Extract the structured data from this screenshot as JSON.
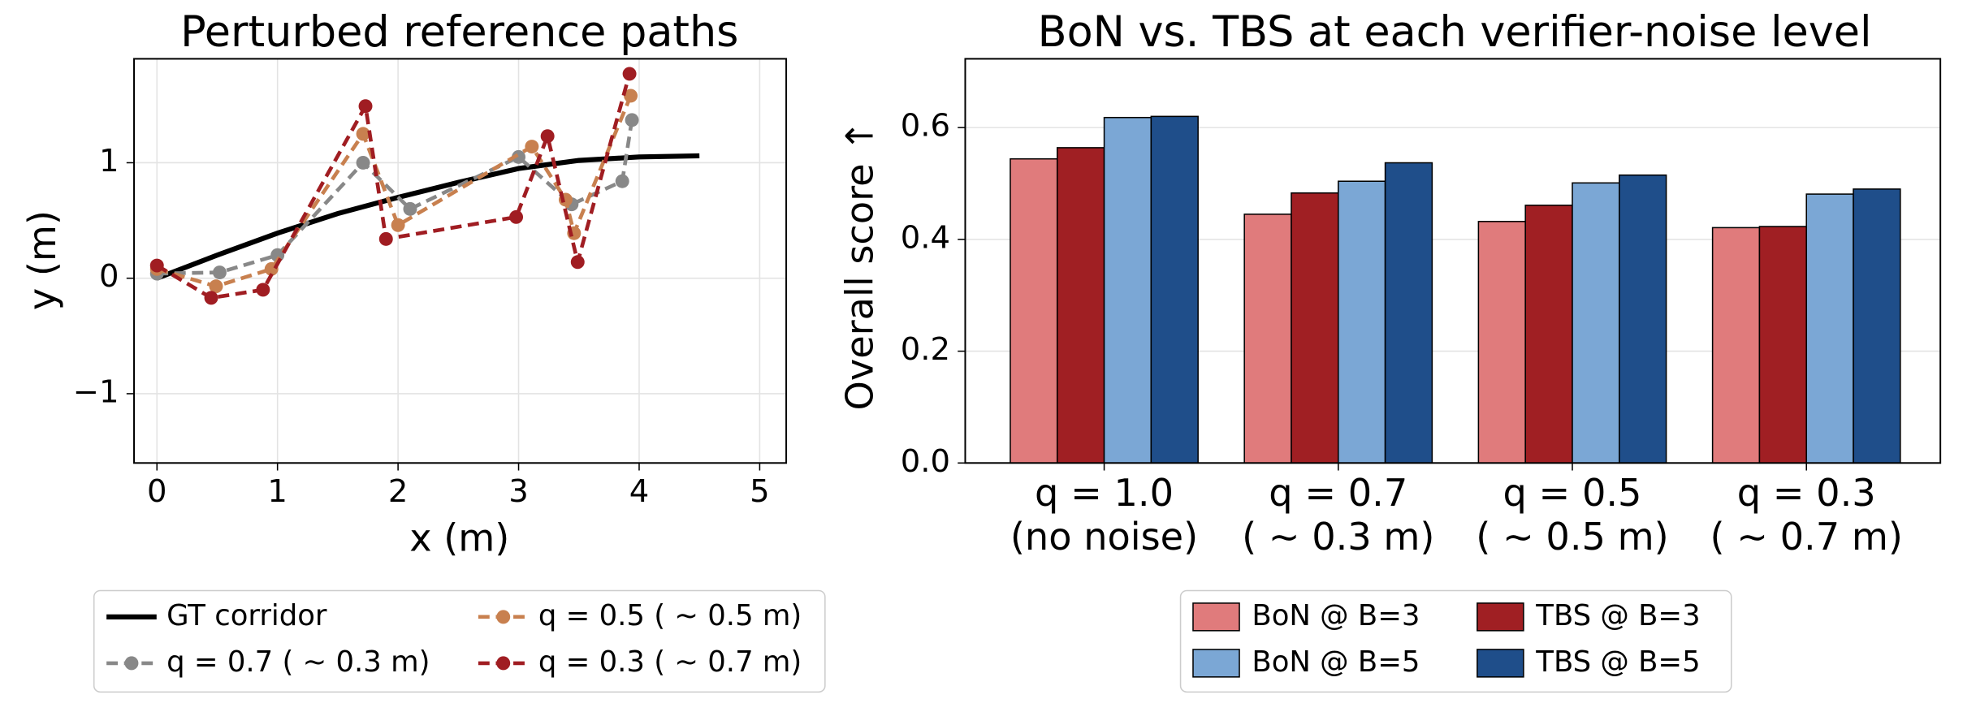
{
  "chart_data": [
    {
      "type": "line",
      "title": "Perturbed reference paths",
      "xlabel": "x (m)",
      "ylabel": "y (m)",
      "xlim": [
        -0.19,
        5.22
      ],
      "ylim": [
        -1.6,
        1.9
      ],
      "xticks": [
        0,
        1,
        2,
        3,
        4,
        5
      ],
      "yticks": [
        {
          "value": -1,
          "label": "−1"
        },
        0,
        1
      ],
      "grid": true,
      "legend": "below",
      "series": [
        {
          "name": "GT corridor",
          "color": "#000000",
          "linestyle": "solid",
          "marker": "none",
          "x": [
            0,
            0.5,
            1,
            1.5,
            2,
            2.5,
            3,
            3.5,
            4,
            4.5
          ],
          "values": [
            0,
            0.2,
            0.39,
            0.56,
            0.7,
            0.83,
            0.95,
            1.02,
            1.05,
            1.06
          ]
        },
        {
          "name": "q = 0.7 ( ∼ 0.3 m)",
          "color": "#888888",
          "linestyle": "dashed",
          "marker": "o",
          "x": [
            0,
            0.52,
            1.0,
            1.71,
            2.1,
            3.0,
            3.44,
            3.86,
            3.94
          ],
          "values": [
            0.04,
            0.05,
            0.2,
            1.0,
            0.6,
            1.05,
            0.64,
            0.84,
            1.37
          ]
        },
        {
          "name": "q = 0.5 ( ∼ 0.5 m)",
          "color": "#c8804f",
          "linestyle": "dashed",
          "marker": "o",
          "x": [
            0,
            0.49,
            0.95,
            1.71,
            2.0,
            3.11,
            3.39,
            3.46,
            3.93
          ],
          "values": [
            0.08,
            -0.07,
            0.08,
            1.25,
            0.46,
            1.14,
            0.68,
            0.39,
            1.58
          ]
        },
        {
          "name": "q = 0.3 ( ∼ 0.7 m)",
          "color": "#a01d22",
          "linestyle": "dashed",
          "marker": "o",
          "x": [
            0,
            0.45,
            0.88,
            1.73,
            1.9,
            2.98,
            3.24,
            3.49,
            3.92
          ],
          "values": [
            0.11,
            -0.17,
            -0.1,
            1.49,
            0.34,
            0.53,
            1.23,
            0.14,
            1.77
          ]
        }
      ]
    },
    {
      "type": "bar",
      "title": "BoN vs. TBS at each verifier-noise level",
      "ylabel": "Overall score ↑",
      "categories": [
        [
          "q = 1.0",
          "(no noise)"
        ],
        [
          "q = 0.7",
          "( ∼ 0.3 m)"
        ],
        [
          "q = 0.5",
          "( ∼ 0.5 m)"
        ],
        [
          "q = 0.3",
          "( ∼ 0.7 m)"
        ]
      ],
      "ylim": [
        0,
        0.723
      ],
      "yticks": [
        {
          "value": 0,
          "label": "0.0"
        },
        0.2,
        0.4,
        0.6
      ],
      "grid": true,
      "legend": "below",
      "series": [
        {
          "name": "BoN @ B=3",
          "color": "#e07b7c",
          "values": [
            0.544,
            0.445,
            0.432,
            0.421
          ]
        },
        {
          "name": "TBS @ B=3",
          "color": "#a01f23",
          "values": [
            0.564,
            0.483,
            0.461,
            0.423
          ]
        },
        {
          "name": "BoN @ B=5",
          "color": "#7ba7d5",
          "values": [
            0.618,
            0.504,
            0.501,
            0.481
          ]
        },
        {
          "name": "TBS @ B=5",
          "color": "#1f4e8a",
          "values": [
            0.62,
            0.537,
            0.515,
            0.49
          ]
        }
      ]
    }
  ]
}
